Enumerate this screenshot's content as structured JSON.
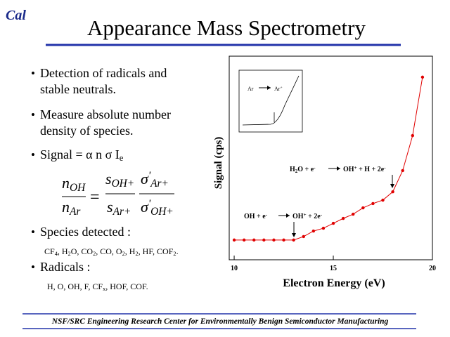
{
  "slide": {
    "logo": "Cal",
    "title": "Appearance Mass Spectrometry",
    "bullet": "•",
    "bullets": [
      [
        "Detection of radicals and",
        "stable neutrals."
      ],
      [
        "Measure absolute number",
        "density of species."
      ],
      [
        "Signal = α n σ I",
        "e"
      ],
      [
        "Species detected :"
      ],
      [
        "Radicals :"
      ]
    ],
    "equation": {
      "lhs_num": [
        "n",
        "OH"
      ],
      "lhs_den": [
        "n",
        "Ar"
      ],
      "equals": "=",
      "s_num": [
        "s",
        "OH+"
      ],
      "s_den": [
        "s",
        "Ar+"
      ],
      "sigma_num": [
        "σ",
        "'",
        "Ar+"
      ],
      "sigma_den": [
        "σ",
        "'",
        "OH+"
      ]
    },
    "species": [
      "CF",
      "4",
      ", H",
      "2",
      "O, CO",
      "2",
      ", CO, O",
      "2",
      ", H",
      "2",
      ", HF, COF",
      "2",
      "."
    ],
    "radicals": [
      "H, O, OH, F, CF",
      "x",
      ", HOF, COF."
    ],
    "footer": "NSF/SRC Engineering Research Center for Environmentally Benign Semiconductor Manufacturing"
  },
  "chart_data": {
    "type": "line",
    "x_label": "Electron Energy (eV)",
    "y_label": "Signal (cps)",
    "x": [
      10,
      10.5,
      11,
      11.5,
      12,
      12.5,
      13,
      13.5,
      14,
      14.5,
      15,
      15.5,
      16,
      16.5,
      17,
      17.5,
      18,
      18.5,
      19,
      19.5
    ],
    "series": [
      {
        "name": "Signal",
        "color": "#e00000",
        "values": [
          9.7,
          9.7,
          9.7,
          9.7,
          9.7,
          9.7,
          9.7,
          11.4,
          14.1,
          15.5,
          17.9,
          20.3,
          22.4,
          25.5,
          27.6,
          29.3,
          33.4,
          43.8,
          61,
          89.7
        ]
      }
    ],
    "xlim": [
      9.75,
      20
    ],
    "ylim": [
      0,
      100
    ],
    "xticks": [
      10,
      15,
      20
    ],
    "annotations": [
      [
        "H",
        "2",
        "O + e",
        "-",
        "OH",
        "+",
        " + H + 2e",
        "-"
      ],
      [
        "OH + e",
        "-",
        "OH",
        "+",
        " + 2e",
        "-"
      ]
    ],
    "inset_labels": [
      "Ar",
      "Ar",
      "+"
    ]
  }
}
